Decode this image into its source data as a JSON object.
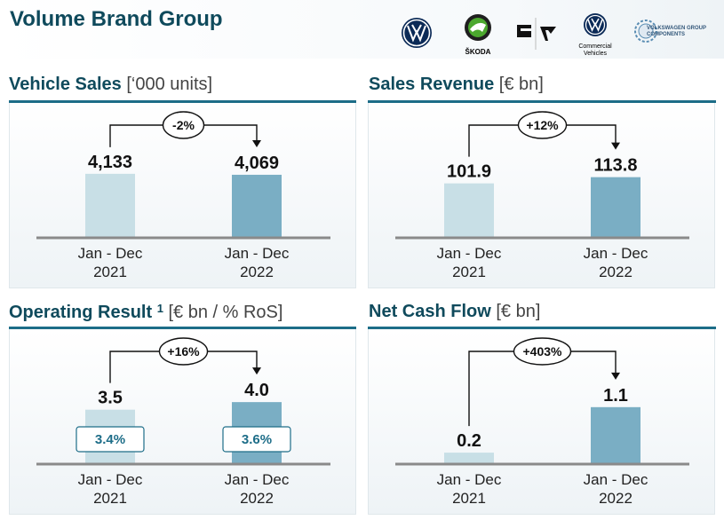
{
  "page_title": "Volume Brand Group",
  "brand_logos": [
    {
      "name": "vw-logo"
    },
    {
      "name": "skoda-logo",
      "caption": "ŠKODA"
    },
    {
      "name": "seat-cupra-logo"
    },
    {
      "name": "vw-commercial-vehicles-logo",
      "caption": "Commercial Vehicles"
    },
    {
      "name": "vw-group-components-logo",
      "caption": "VOLKSWAGEN GROUP COMPONENTS"
    }
  ],
  "colors": {
    "title": "#0f4a5c",
    "rule": "#1d6d88",
    "bar_2021": "#c8dfe6",
    "bar_2022": "#7aaec4",
    "axis": "#8a8a8a"
  },
  "chart_data": [
    {
      "id": "vehicle_sales",
      "type": "bar",
      "title": "Vehicle Sales",
      "unit": "[‘000 units]",
      "categories": [
        [
          "Jan - Dec",
          "2021"
        ],
        [
          "Jan - Dec",
          "2022"
        ]
      ],
      "values": [
        4133,
        4069
      ],
      "value_labels": [
        "4,133",
        "4,069"
      ],
      "change_label": "-2%",
      "ylim": [
        0,
        5500
      ]
    },
    {
      "id": "sales_revenue",
      "type": "bar",
      "title": "Sales Revenue",
      "unit": "[€ bn]",
      "categories": [
        [
          "Jan - Dec",
          "2021"
        ],
        [
          "Jan - Dec",
          "2022"
        ]
      ],
      "values": [
        101.9,
        113.8
      ],
      "value_labels": [
        "101.9",
        "113.8"
      ],
      "change_label": "+12%",
      "ylim": [
        0,
        160
      ]
    },
    {
      "id": "operating_result",
      "type": "bar",
      "title": "Operating Result",
      "title_sup": "1",
      "unit": "[€ bn / % RoS]",
      "categories": [
        [
          "Jan - Dec",
          "2021"
        ],
        [
          "Jan - Dec",
          "2022"
        ]
      ],
      "values": [
        3.5,
        4.0
      ],
      "value_labels": [
        "3.5",
        "4.0"
      ],
      "ros_labels": [
        "3.4%",
        "3.6%"
      ],
      "change_label": "+16%",
      "ylim": [
        0,
        5.5
      ]
    },
    {
      "id": "net_cash_flow",
      "type": "bar",
      "title": "Net Cash Flow",
      "unit": "[€ bn]",
      "categories": [
        [
          "Jan - Dec",
          "2021"
        ],
        [
          "Jan - Dec",
          "2022"
        ]
      ],
      "values": [
        0.2,
        1.1
      ],
      "value_labels": [
        "0.2",
        "1.1"
      ],
      "change_label": "+403%",
      "ylim": [
        0,
        1.65
      ]
    }
  ]
}
